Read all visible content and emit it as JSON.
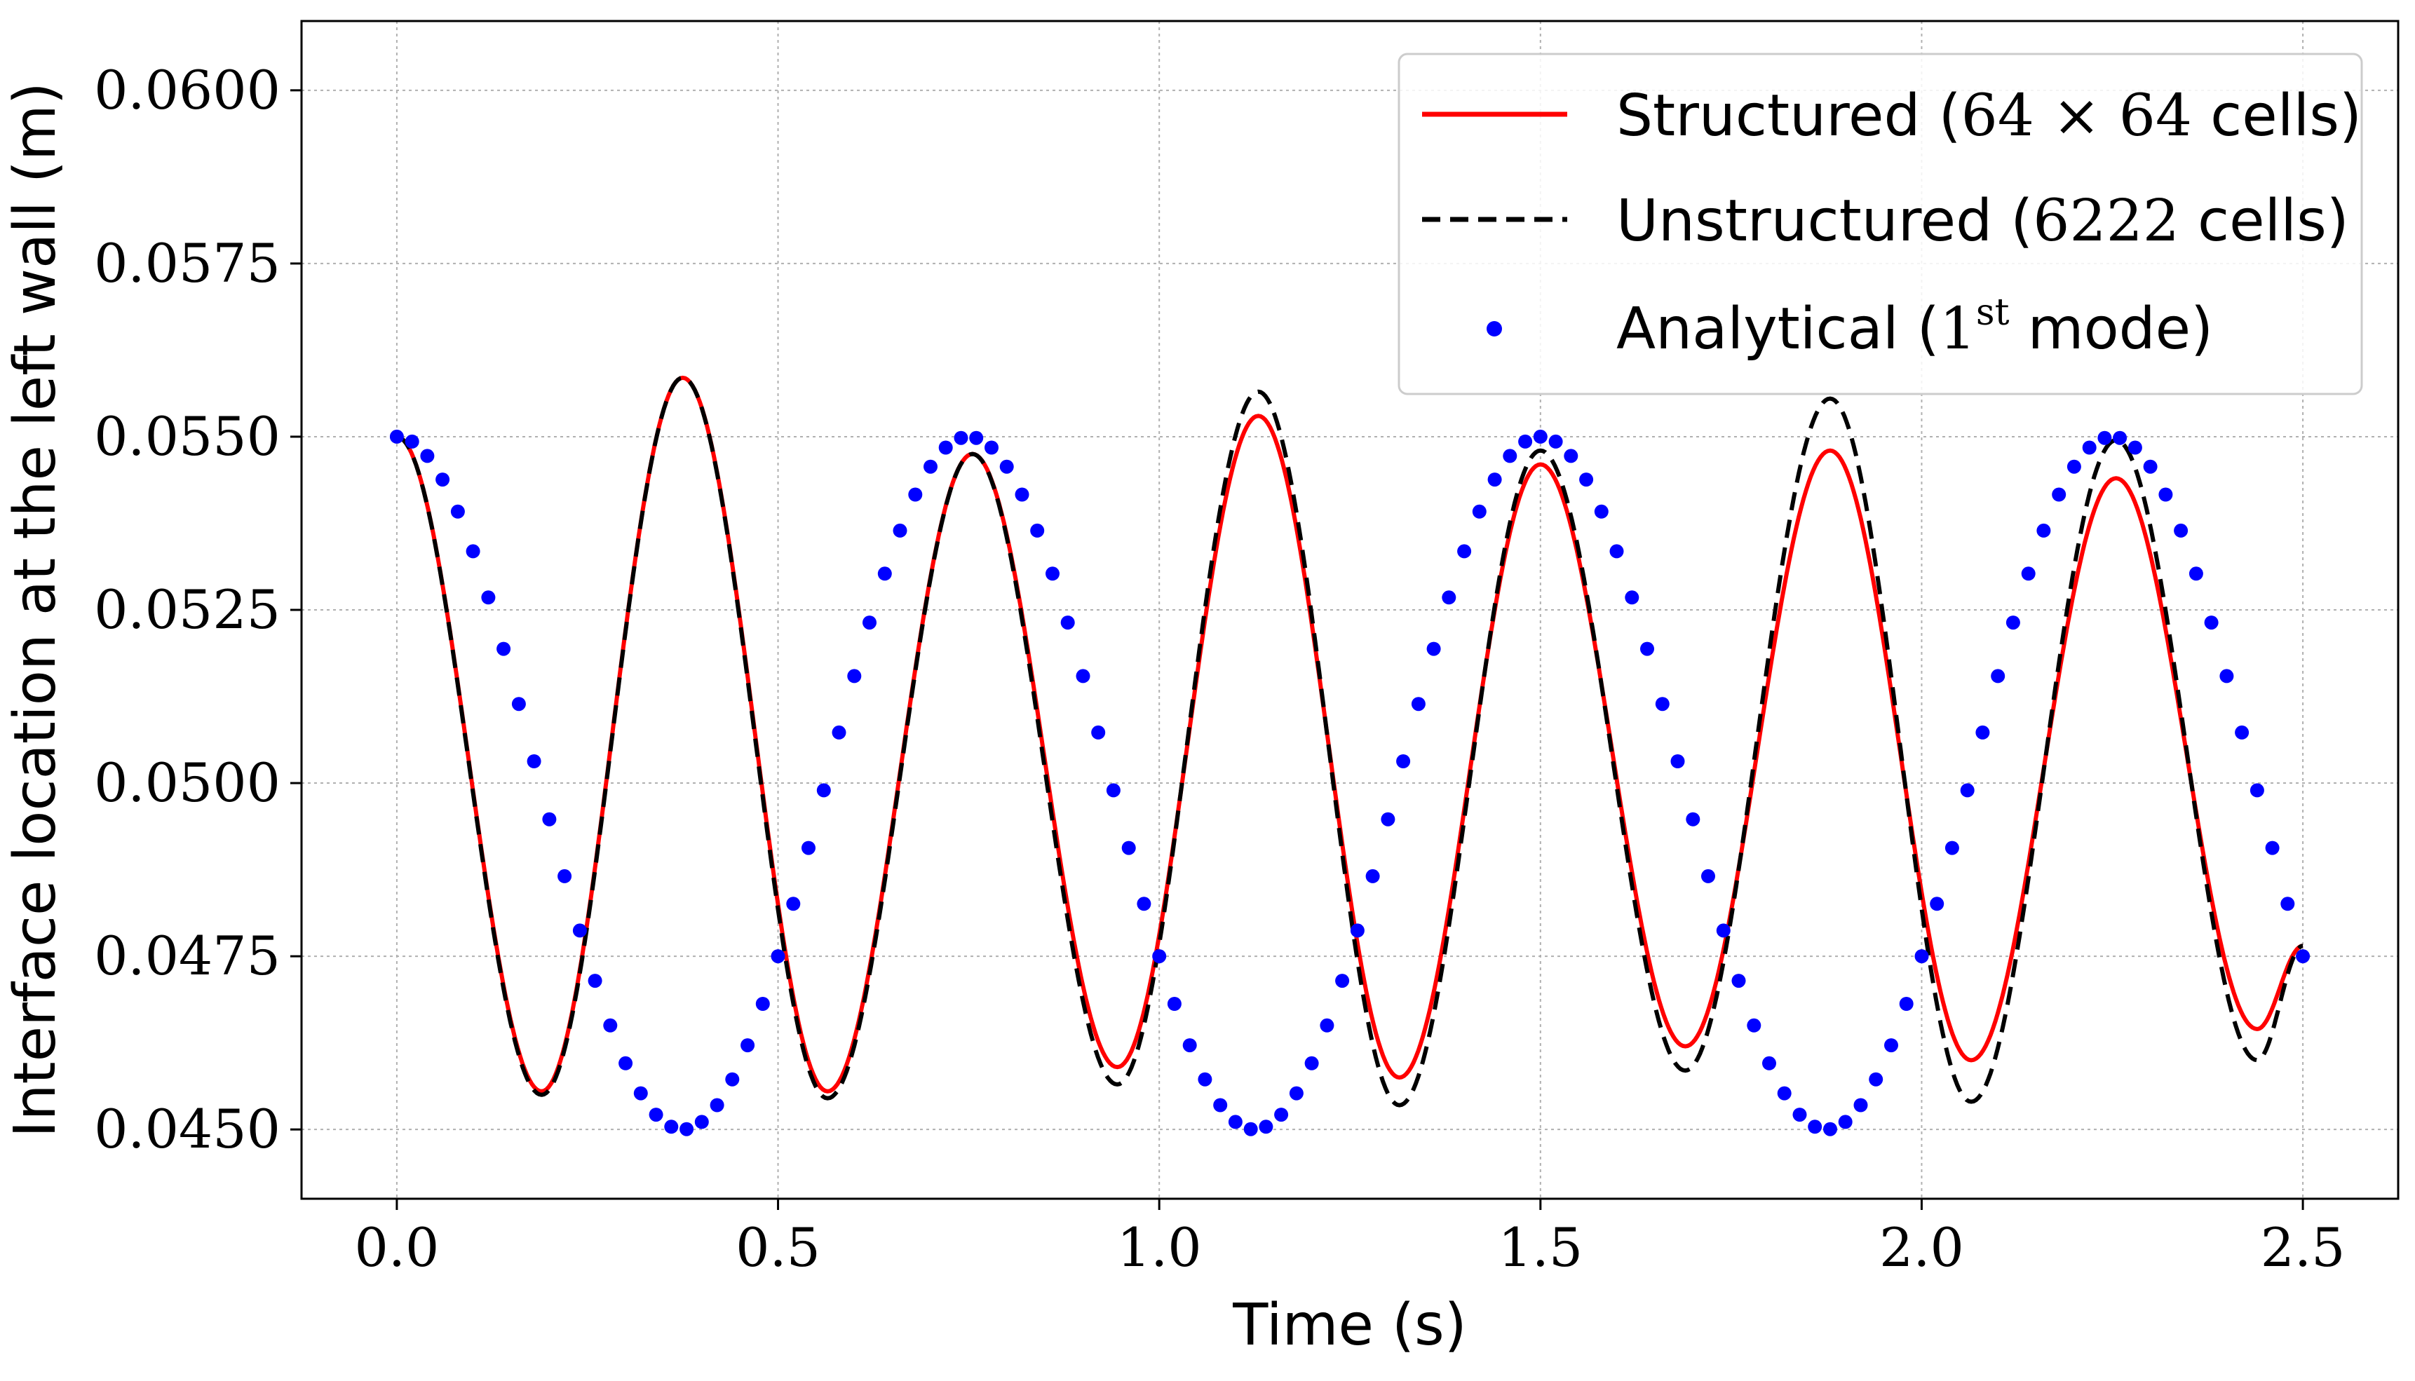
{
  "chart_data": {
    "type": "line",
    "title": "",
    "xlabel": "Time (s)",
    "ylabel": "Interface location at the left wall (m)",
    "xlim": [
      -0.125,
      2.625
    ],
    "ylim": [
      0.044,
      0.061
    ],
    "xticks": [
      0.0,
      0.5,
      1.0,
      1.5,
      2.0,
      2.5
    ],
    "xtick_labels": [
      "0.0",
      "0.5",
      "1.0",
      "1.5",
      "2.0",
      "2.5"
    ],
    "yticks": [
      0.045,
      0.0475,
      0.05,
      0.0525,
      0.055,
      0.0575,
      0.06
    ],
    "ytick_labels": [
      "0.0450",
      "0.0475",
      "0.0500",
      "0.0525",
      "0.0550",
      "0.0575",
      "0.0600"
    ],
    "grid": true,
    "legend_position": "top-right",
    "series": [
      {
        "name": "Structured (64 × 64 cells)",
        "style": "solid",
        "color": "#ff0000",
        "keypoints": [
          {
            "t": 0.0,
            "y": 0.055
          },
          {
            "t": 0.19,
            "y": 0.04555
          },
          {
            "t": 0.375,
            "y": 0.05585
          },
          {
            "t": 0.565,
            "y": 0.04555
          },
          {
            "t": 0.755,
            "y": 0.05475
          },
          {
            "t": 0.945,
            "y": 0.0459
          },
          {
            "t": 1.13,
            "y": 0.0553
          },
          {
            "t": 1.315,
            "y": 0.04575
          },
          {
            "t": 1.5,
            "y": 0.0546
          },
          {
            "t": 1.69,
            "y": 0.0462
          },
          {
            "t": 1.88,
            "y": 0.0548
          },
          {
            "t": 2.065,
            "y": 0.046
          },
          {
            "t": 2.255,
            "y": 0.0544
          },
          {
            "t": 2.44,
            "y": 0.04645
          },
          {
            "t": 2.5,
            "y": 0.04765
          }
        ]
      },
      {
        "name": "Unstructured (6222 cells)",
        "style": "dashed",
        "color": "#000000",
        "keypoints": [
          {
            "t": 0.0,
            "y": 0.055
          },
          {
            "t": 0.19,
            "y": 0.0455
          },
          {
            "t": 0.375,
            "y": 0.05585
          },
          {
            "t": 0.565,
            "y": 0.04545
          },
          {
            "t": 0.755,
            "y": 0.05475
          },
          {
            "t": 0.945,
            "y": 0.04565
          },
          {
            "t": 1.13,
            "y": 0.05565
          },
          {
            "t": 1.315,
            "y": 0.04535
          },
          {
            "t": 1.5,
            "y": 0.0548
          },
          {
            "t": 1.69,
            "y": 0.04585
          },
          {
            "t": 1.88,
            "y": 0.05555
          },
          {
            "t": 2.065,
            "y": 0.0454
          },
          {
            "t": 2.255,
            "y": 0.05495
          },
          {
            "t": 2.44,
            "y": 0.046
          },
          {
            "t": 2.5,
            "y": 0.04765
          }
        ]
      },
      {
        "name": "Analytical (1st mode)",
        "style": "markers",
        "color": "#0000ff",
        "mean": 0.05,
        "amplitude": 0.005,
        "period": 0.75,
        "dt": 0.02,
        "t_range": [
          0.0,
          2.5
        ]
      }
    ]
  },
  "legend": {
    "entries": [
      {
        "pre": "Structured (",
        "math": "64 × 64",
        "post": " cells)"
      },
      {
        "pre": "Unstructured (",
        "math": "6222",
        "post": " cells)"
      },
      {
        "pre": "Analytical (",
        "math": "1",
        "sup": "st",
        "post": " mode)"
      }
    ]
  }
}
